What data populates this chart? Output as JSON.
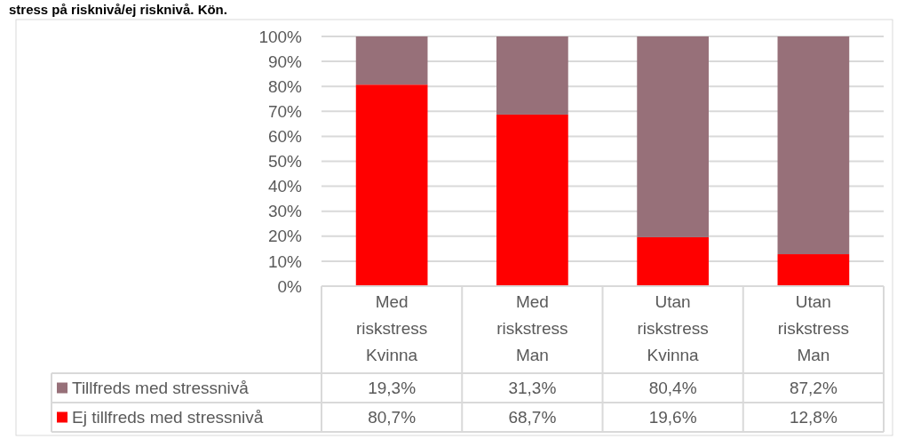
{
  "chart_data": {
    "type": "bar",
    "stacked": true,
    "title": "stress på risknivå/ej risknivå. Kön.",
    "categories": [
      "Med riskstress Kvinna",
      "Med riskstress Man",
      "Utan riskstress Kvinna",
      "Utan riskstress Man"
    ],
    "series": [
      {
        "name": "Ej tillfreds med stressnivå",
        "color": "#ff0000",
        "values": [
          80.7,
          68.7,
          19.6,
          12.8
        ],
        "value_labels": [
          "80,7%",
          "68,7%",
          "19,6%",
          "12,8%"
        ]
      },
      {
        "name": "Tillfreds med stressnivå",
        "color": "#977079",
        "values": [
          19.3,
          31.3,
          80.4,
          87.2
        ],
        "value_labels": [
          "19,3%",
          "31,3%",
          "80,4%",
          "87,2%"
        ]
      }
    ],
    "ylim": [
      0,
      100
    ],
    "yticks": [
      {
        "value": 0,
        "label": "0%"
      },
      {
        "value": 10,
        "label": "10%"
      },
      {
        "value": 20,
        "label": "20%"
      },
      {
        "value": 30,
        "label": "30%"
      },
      {
        "value": 40,
        "label": "40%"
      },
      {
        "value": 50,
        "label": "50%"
      },
      {
        "value": 60,
        "label": "60%"
      },
      {
        "value": 70,
        "label": "70%"
      },
      {
        "value": 80,
        "label": "80%"
      },
      {
        "value": 90,
        "label": "90%"
      },
      {
        "value": 100,
        "label": "100%"
      }
    ],
    "grid": "y",
    "legend": "bottom"
  }
}
